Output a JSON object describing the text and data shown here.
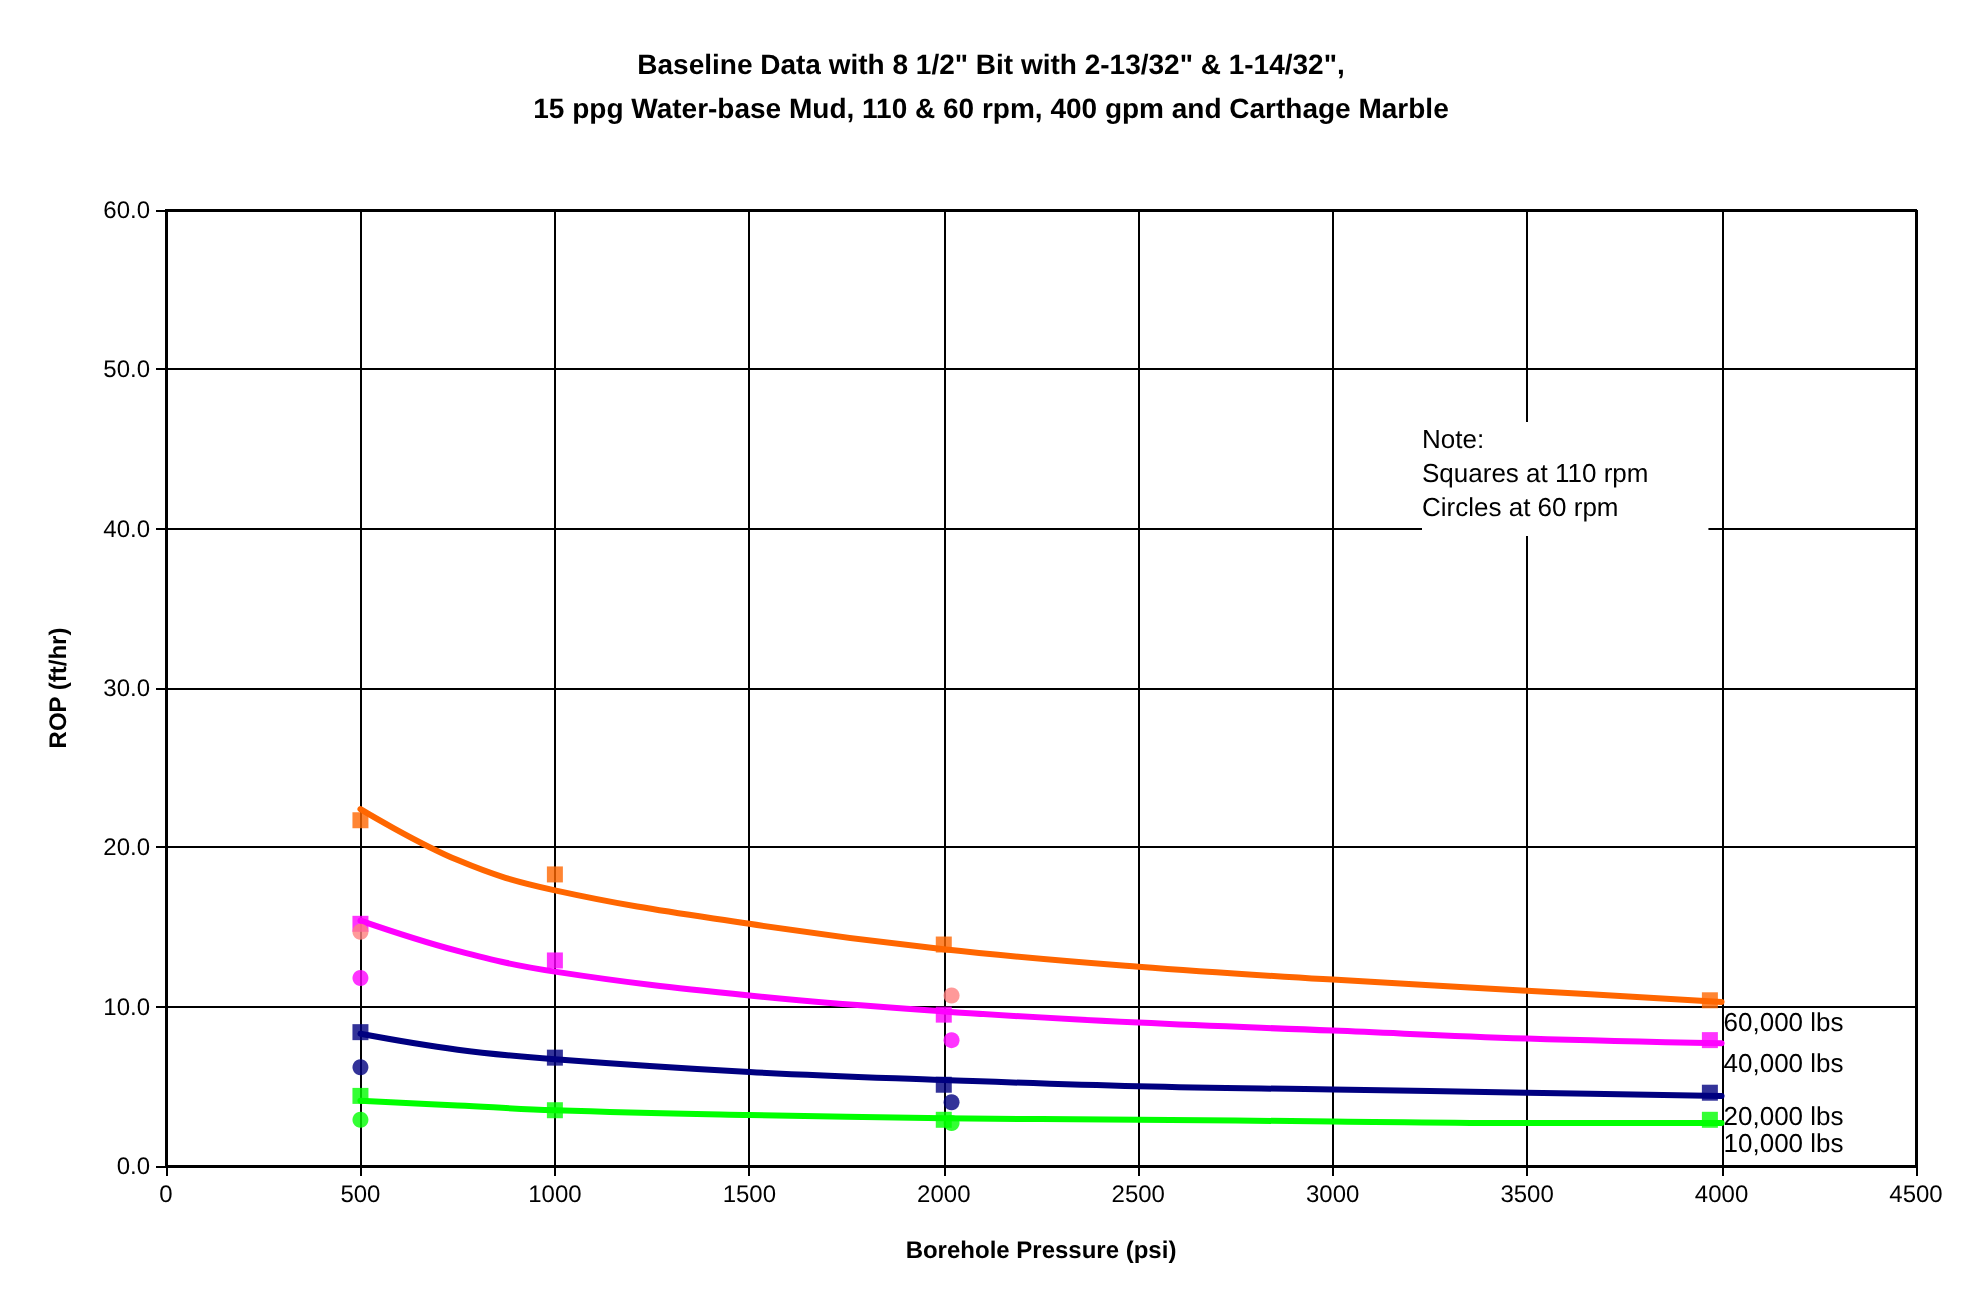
{
  "chart_data": {
    "type": "scatter",
    "title": "Baseline Data with 8 1/2\" Bit with 2-13/32\" & 1-14/32\",\n15 ppg Water-base Mud, 110 & 60 rpm, 400 gpm and Carthage Marble",
    "xlabel": "Borehole Pressure (psi)",
    "ylabel": "ROP (ft/hr)",
    "annotations": [
      "Note:\nSquares at 110 rpm\nCircles at 60 rpm"
    ],
    "xlim": [
      0,
      4500
    ],
    "xticks": [
      0,
      500,
      1000,
      1500,
      2000,
      2500,
      3000,
      3500,
      4000,
      4500
    ],
    "ylim": [
      0,
      60
    ],
    "yticks": [
      {
        "value": 0,
        "label": "0.0"
      },
      {
        "value": 10,
        "label": "10.0"
      },
      {
        "value": 20,
        "label": "20.0"
      },
      {
        "value": 30,
        "label": "30.0"
      },
      {
        "value": 40,
        "label": "40.0"
      },
      {
        "value": 50,
        "label": "50.0"
      },
      {
        "value": 60,
        "label": "60.0"
      }
    ],
    "grid": true,
    "legend": false,
    "series": [
      {
        "type": "line",
        "name": "60,000 lbs",
        "color": "#ff6600",
        "marker": "none",
        "x": [
          500,
          750,
          1000,
          1500,
          2000,
          2500,
          3000,
          3500,
          4000
        ],
        "values": [
          22.4,
          19.2,
          17.3,
          15.2,
          13.6,
          12.5,
          11.7,
          11.0,
          10.3
        ]
      },
      {
        "type": "line",
        "name": "40,000 lbs",
        "color": "#ff00ff",
        "marker": "none",
        "x": [
          500,
          750,
          1000,
          1500,
          2000,
          2500,
          3000,
          3500,
          4000
        ],
        "values": [
          15.4,
          13.5,
          12.2,
          10.7,
          9.7,
          9.0,
          8.5,
          8.0,
          7.7
        ]
      },
      {
        "type": "line",
        "name": "20,000 lbs",
        "color": "#000080",
        "marker": "none",
        "x": [
          500,
          750,
          1000,
          1500,
          2000,
          2500,
          3000,
          3500,
          4000
        ],
        "values": [
          8.3,
          7.3,
          6.7,
          5.9,
          5.4,
          5.0,
          4.8,
          4.6,
          4.4
        ]
      },
      {
        "type": "line",
        "name": "10,000 lbs",
        "color": "#00ff00",
        "marker": "none",
        "x": [
          500,
          750,
          1000,
          1500,
          2000,
          2500,
          3000,
          3500,
          4000
        ],
        "values": [
          4.1,
          3.8,
          3.5,
          3.2,
          3.0,
          2.9,
          2.8,
          2.7,
          2.7
        ]
      },
      {
        "type": "scatter",
        "color": "#ff6600",
        "marker": "square",
        "x": [
          500,
          1000,
          2000,
          3970
        ],
        "values": [
          21.7,
          18.3,
          13.9,
          10.4
        ]
      },
      {
        "type": "scatter",
        "color": "#ff00ff",
        "marker": "square",
        "x": [
          500,
          1000,
          2000,
          3970
        ],
        "values": [
          15.2,
          12.9,
          9.5,
          7.9
        ]
      },
      {
        "type": "scatter",
        "color": "#000080",
        "marker": "square",
        "x": [
          500,
          1000,
          2000,
          3970
        ],
        "values": [
          8.4,
          6.8,
          5.1,
          4.6
        ]
      },
      {
        "type": "scatter",
        "color": "#00ff00",
        "marker": "square",
        "x": [
          500,
          1000,
          2000,
          3970
        ],
        "values": [
          4.4,
          3.5,
          2.9,
          2.9
        ]
      },
      {
        "type": "scatter",
        "color": "#ff8080",
        "marker": "circle",
        "x": [
          500,
          2020
        ],
        "values": [
          14.7,
          10.7
        ]
      },
      {
        "type": "scatter",
        "color": "#ff00ff",
        "marker": "circle",
        "x": [
          500,
          2020
        ],
        "values": [
          11.8,
          7.9
        ]
      },
      {
        "type": "scatter",
        "color": "#000080",
        "marker": "circle",
        "x": [
          500,
          2020
        ],
        "values": [
          6.2,
          4.0
        ]
      },
      {
        "type": "scatter",
        "color": "#00ff00",
        "marker": "circle",
        "x": [
          500,
          2020
        ],
        "values": [
          2.9,
          2.7
        ]
      }
    ]
  }
}
